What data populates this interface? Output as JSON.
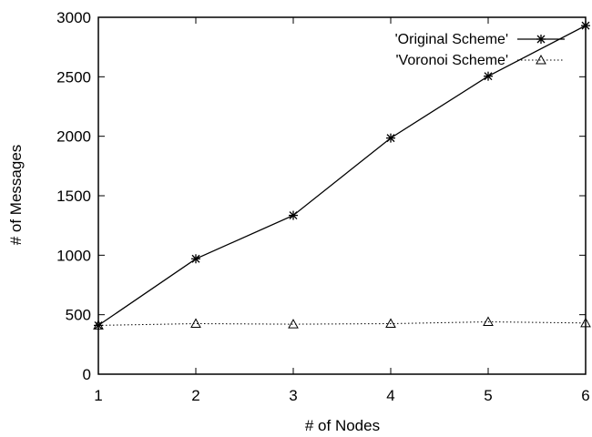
{
  "chart_data": {
    "type": "line",
    "title": "",
    "xlabel": "# of Nodes",
    "ylabel": "# of Messages",
    "x": [
      1,
      2,
      3,
      4,
      5,
      6
    ],
    "xlim": [
      1,
      6
    ],
    "ylim": [
      0,
      3000
    ],
    "xticks": [
      "1",
      "2",
      "3",
      "4",
      "5",
      "6"
    ],
    "yticks": [
      "0",
      "500",
      "1000",
      "1500",
      "2000",
      "2500",
      "3000"
    ],
    "grid": false,
    "legend_position": "top-right",
    "series": [
      {
        "name": "'Original Scheme'",
        "values": [
          410,
          970,
          1335,
          1985,
          2505,
          2930
        ],
        "marker": "star",
        "line_style": "solid",
        "color": "#000000"
      },
      {
        "name": "'Voronoi Scheme'",
        "values": [
          410,
          425,
          420,
          425,
          440,
          430
        ],
        "marker": "triangle",
        "line_style": "dotted",
        "color": "#000000"
      }
    ]
  }
}
